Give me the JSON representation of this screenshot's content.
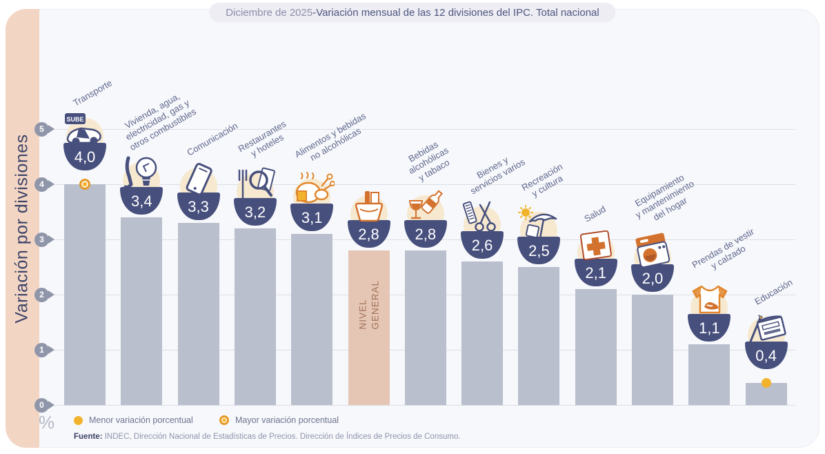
{
  "header": {
    "date_part": "Diciembre de 2025",
    "separator": " - ",
    "title_part": "Variación mensual de las 12 divisiones del IPC. Total nacional"
  },
  "axis": {
    "ylabel": "Variación por divisiones",
    "unit": "%",
    "ticks": [
      0,
      1,
      2,
      3,
      4,
      5
    ]
  },
  "legend": {
    "items": [
      {
        "id": "menor",
        "label": "Menor variación porcentual",
        "marker": "solid-dot"
      },
      {
        "id": "mayor",
        "label": "Mayor variación porcentual",
        "marker": "ring-dot"
      }
    ]
  },
  "source": {
    "prefix": "Fuente:",
    "text": " INDEC, Dirección Nacional de Estadísticas de Precios. Dirección de Índices de Precios de Consumo."
  },
  "colors": {
    "bar": "#b9bfcc",
    "bar_general": "#e5c6b4",
    "band": "#f3d5c4",
    "navy": "#474f7d",
    "beige": "#f6e9d0",
    "grid": "#dcdee6",
    "dot_yellow": "#f2b32c",
    "dot_ring": "#e59a28",
    "orange": "#d3722e"
  },
  "chart_data": {
    "type": "bar",
    "title": "Diciembre de 2025 - Variación mensual de las 12 divisiones del IPC. Total nacional",
    "xlabel": "",
    "ylabel": "Variación por divisiones",
    "unit": "%",
    "ylim": [
      0,
      5
    ],
    "yticks": [
      0,
      1,
      2,
      3,
      4,
      5
    ],
    "grid": true,
    "legend_position": "bottom-left",
    "categories": [
      "Transporte",
      "Vivienda, agua, electricidad, gas y otros combustibles",
      "Comunicación",
      "Restaurantes y hoteles",
      "Alimentos y bebidas no alcohólicas",
      "Nivel general",
      "Bebidas alcohólicas y tabaco",
      "Bienes y servicios varios",
      "Recreación y cultura",
      "Salud",
      "Equipamiento y mantenimiento del hogar",
      "Prendas de vestir y calzado",
      "Educación"
    ],
    "values": [
      4.0,
      3.4,
      3.3,
      3.2,
      3.1,
      2.8,
      2.8,
      2.6,
      2.5,
      2.1,
      2.0,
      1.1,
      0.4
    ],
    "items": [
      {
        "id": "transporte",
        "label_lines": [
          "Transporte"
        ],
        "value": 4.0,
        "value_label": "4,0",
        "icon": "sube-card-car-icon",
        "marker": "mayor"
      },
      {
        "id": "vivienda",
        "label_lines": [
          "Vivienda, agua,",
          "electricidad, gas y",
          "otros combustibles"
        ],
        "value": 3.4,
        "value_label": "3,4",
        "icon": "lightbulb-tool-icon"
      },
      {
        "id": "comunicacion",
        "label_lines": [
          "Comunicación"
        ],
        "value": 3.3,
        "value_label": "3,3",
        "icon": "smartphone-icon"
      },
      {
        "id": "restaurantes",
        "label_lines": [
          "Restaurantes",
          "y hoteles"
        ],
        "value": 3.2,
        "value_label": "3,2",
        "icon": "fork-magnifier-icon"
      },
      {
        "id": "alimentos",
        "label_lines": [
          "Alimentos y bebidas",
          "no alcohólicas"
        ],
        "value": 3.1,
        "value_label": "3,1",
        "icon": "roast-chicken-icon"
      },
      {
        "id": "nivel-general",
        "label_lines": [],
        "value": 2.8,
        "value_label": "2,8",
        "icon": "grocery-basket-icon",
        "general": true,
        "inner_label": "NIVEL\nGENERAL"
      },
      {
        "id": "bebidas",
        "label_lines": [
          "Bebidas",
          "alcohólicas",
          "y tabaco"
        ],
        "value": 2.8,
        "value_label": "2,8",
        "icon": "wine-bottle-glass-icon"
      },
      {
        "id": "bienes",
        "label_lines": [
          "Bienes y",
          "servicios varios"
        ],
        "value": 2.6,
        "value_label": "2,6",
        "icon": "comb-scissors-icon"
      },
      {
        "id": "recreacion",
        "label_lines": [
          "Recreación",
          "y cultura"
        ],
        "value": 2.5,
        "value_label": "2,5",
        "icon": "sun-umbrella-icon"
      },
      {
        "id": "salud",
        "label_lines": [
          "Salud"
        ],
        "value": 2.1,
        "value_label": "2,1",
        "icon": "first-aid-kit-icon"
      },
      {
        "id": "equipamiento",
        "label_lines": [
          "Equipamiento",
          "y mantenimiento",
          "del hogar"
        ],
        "value": 2.0,
        "value_label": "2,0",
        "icon": "washing-machine-icon"
      },
      {
        "id": "prendas",
        "label_lines": [
          "Prendas de vestir",
          "y calzado"
        ],
        "value": 1.1,
        "value_label": "1,1",
        "icon": "tshirt-sneaker-icon"
      },
      {
        "id": "educacion",
        "label_lines": [
          "Educación"
        ],
        "value": 0.4,
        "value_label": "0,4",
        "icon": "notebook-pencil-icon",
        "marker": "menor"
      }
    ]
  }
}
